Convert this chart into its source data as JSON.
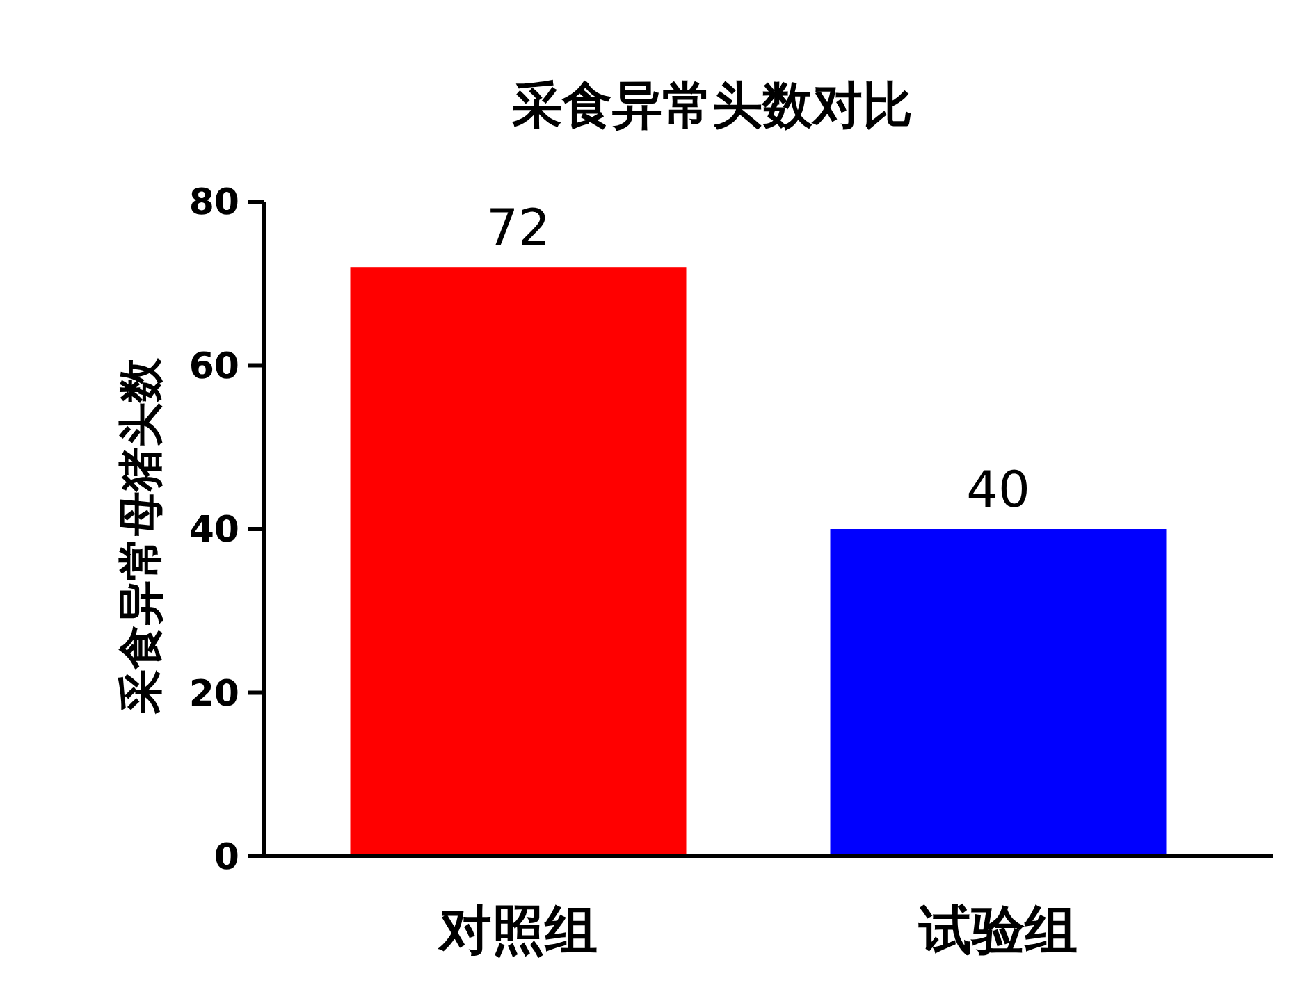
{
  "chart_data": {
    "type": "bar",
    "title": "采食异常头数对比",
    "ylabel": "采食异常母猪头数",
    "categories": [
      "对照组",
      "试验组"
    ],
    "values": [
      72,
      40
    ],
    "colors": [
      "#ff0000",
      "#0000ff"
    ],
    "ylim": [
      0,
      80
    ],
    "yticks": [
      0,
      20,
      40,
      60,
      80
    ],
    "data_labels": true
  }
}
